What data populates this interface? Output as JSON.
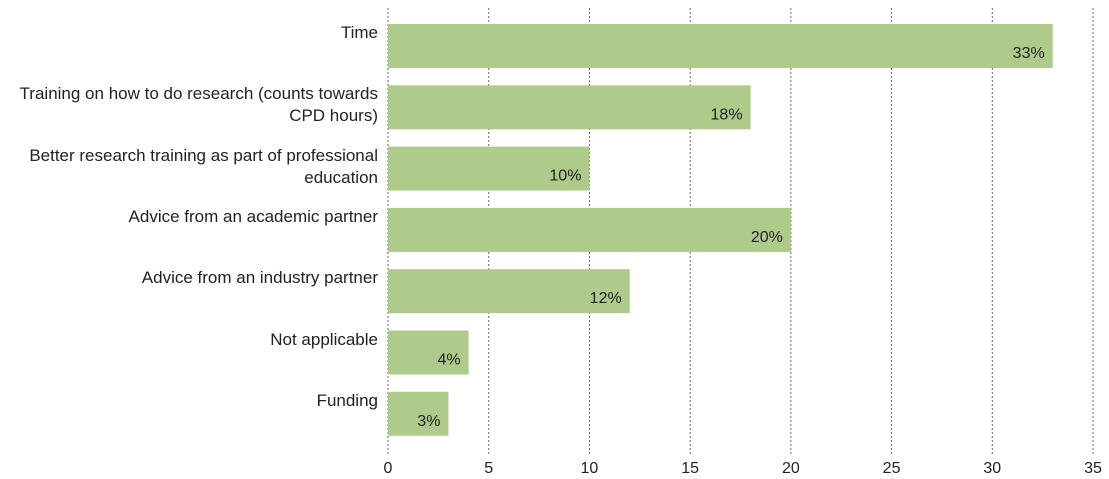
{
  "chart_data": {
    "type": "barh",
    "categories": [
      "Time",
      "Training on how to do research (counts towards CPD hours)",
      "Better research training as part of professional education",
      "Advice from an academic partner",
      "Advice from an industry partner",
      "Not applicable",
      "Funding"
    ],
    "values": [
      33,
      18,
      10,
      20,
      12,
      4,
      3
    ],
    "value_labels": [
      "33%",
      "18%",
      "10%",
      "20%",
      "12%",
      "4%",
      "3%"
    ],
    "color": "#aecb8b",
    "xlim": [
      0,
      35
    ],
    "xticks": [
      0,
      5,
      10,
      15,
      20,
      25,
      30,
      35
    ],
    "grid": true
  }
}
